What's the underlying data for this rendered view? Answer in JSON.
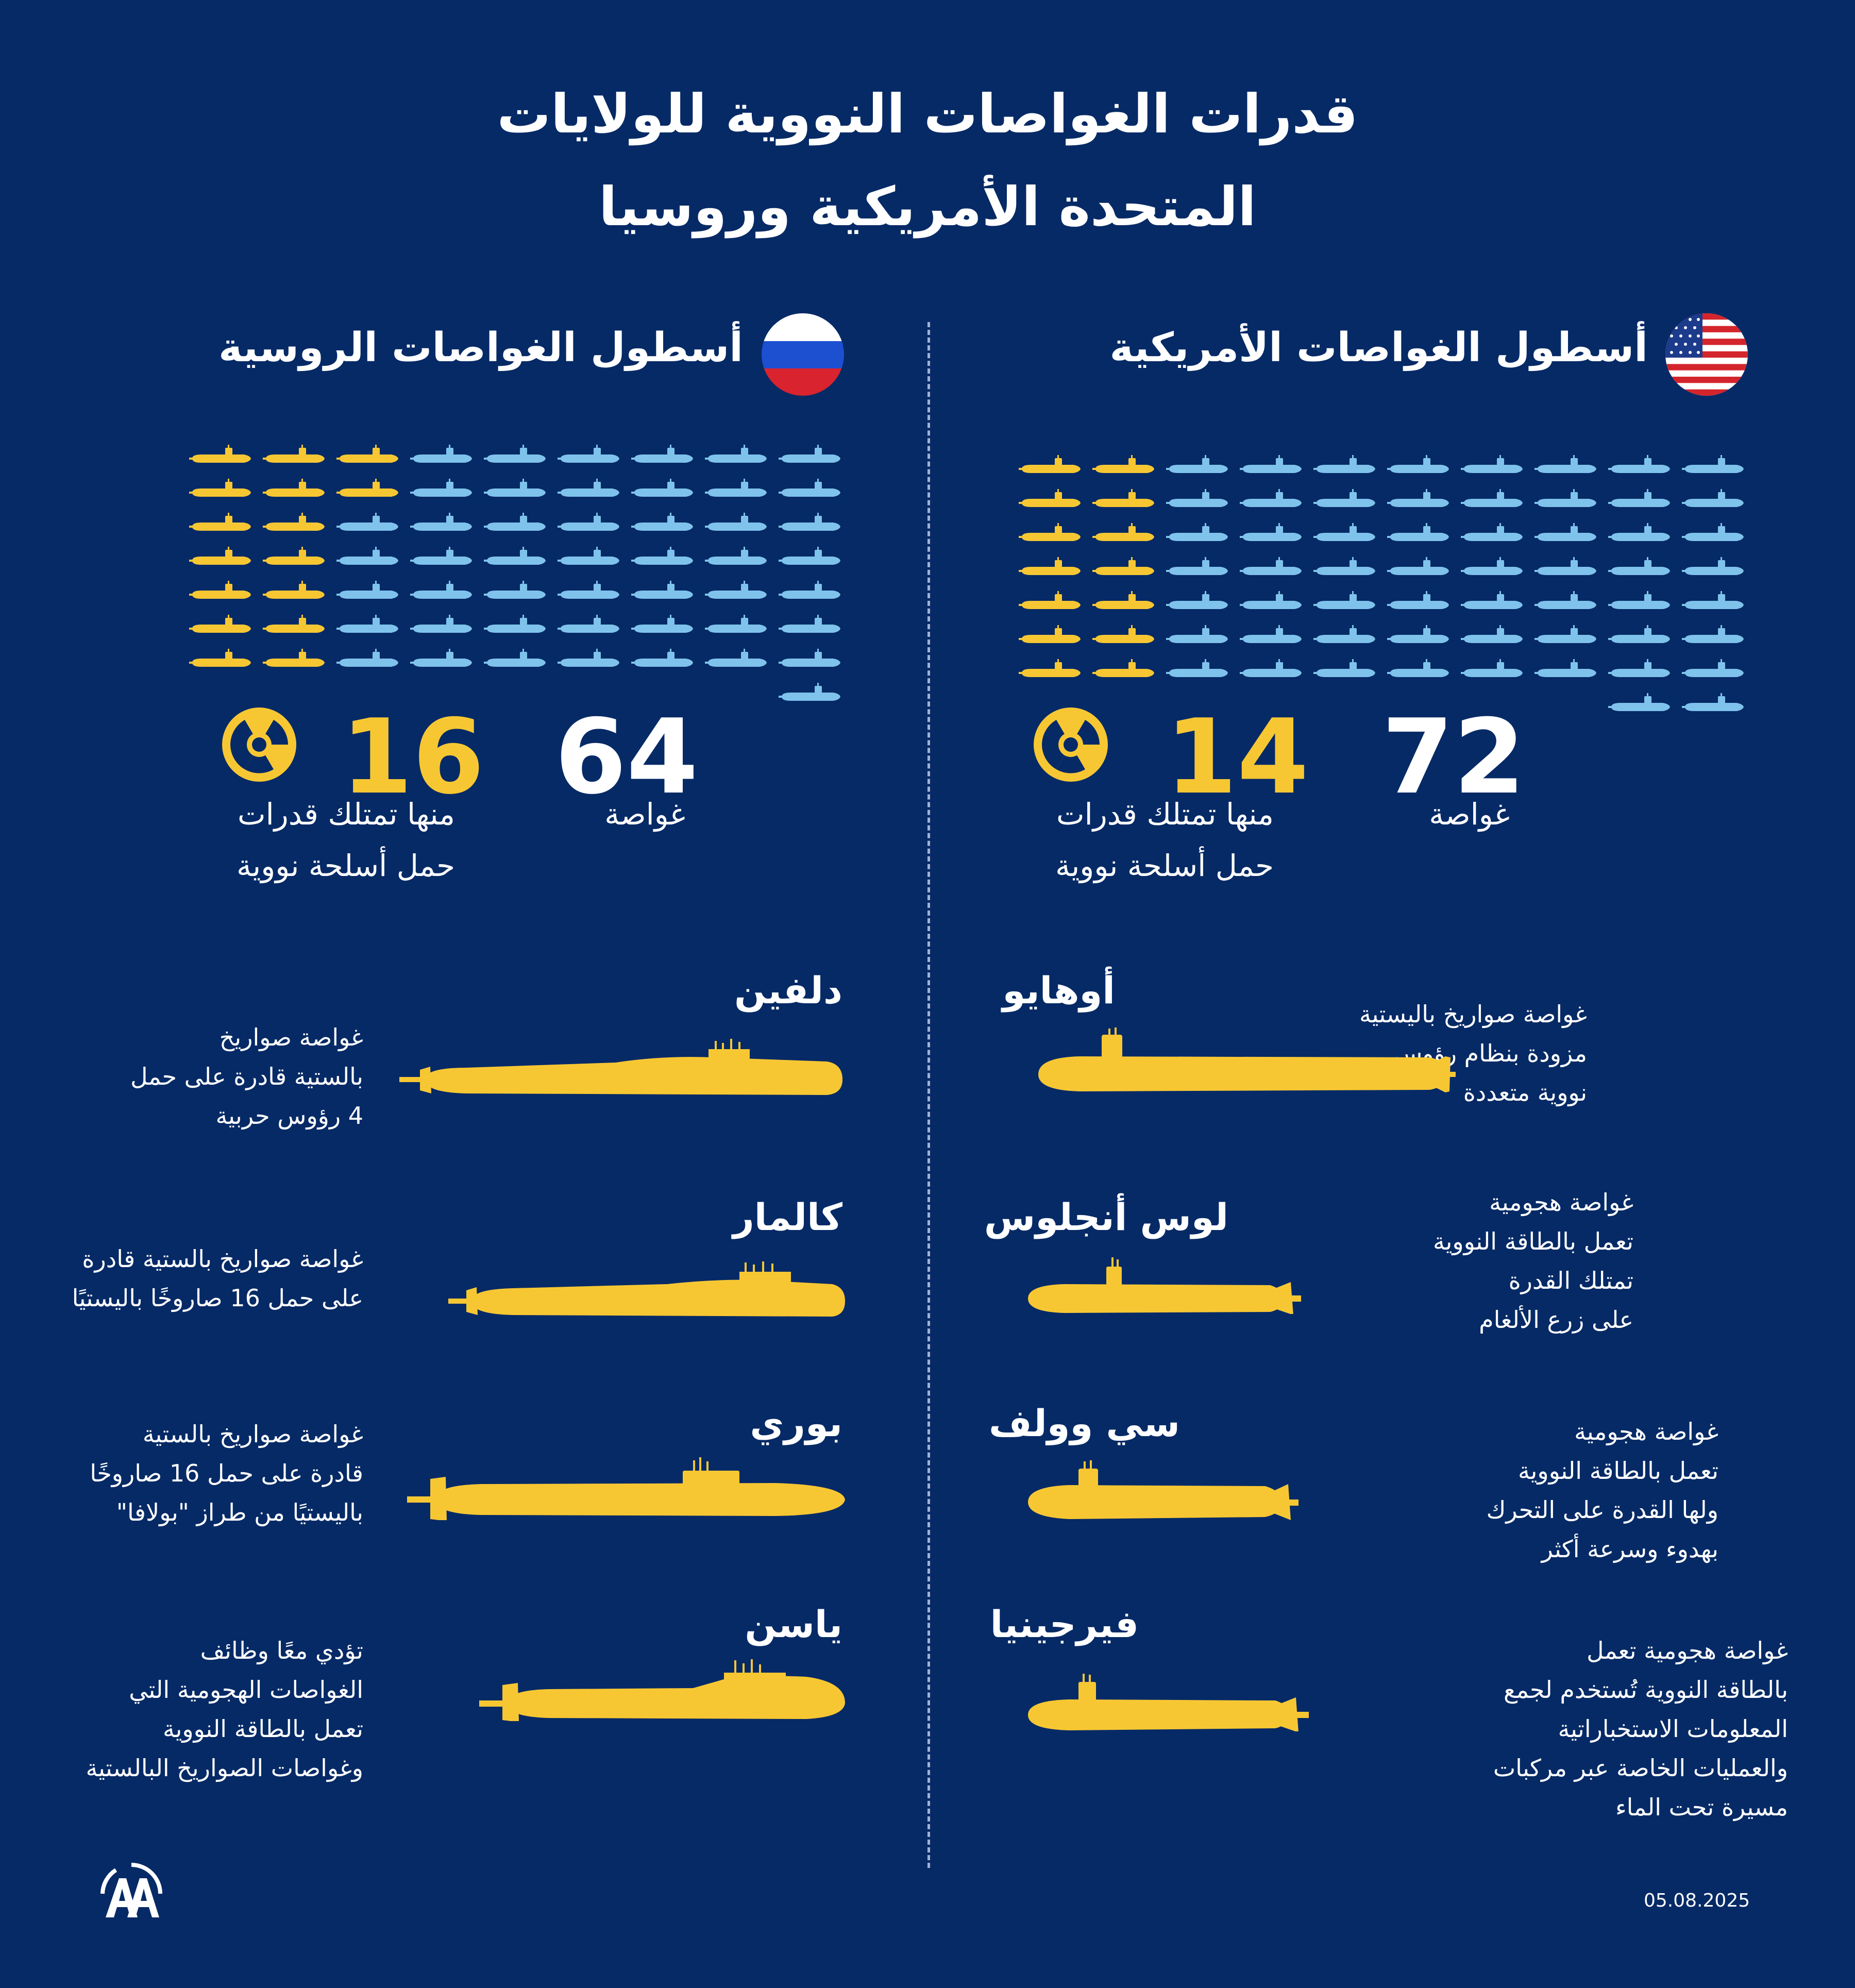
{
  "title": {
    "line1": "قدرات الغواصات النووية للولايات",
    "line2": "المتحدة الأمريكية وروسيا"
  },
  "colors": {
    "background": "#062a66",
    "nuclear": "#f7c733",
    "conventional": "#7fc3ec"
  },
  "usa": {
    "fleet_title": "أسطول الغواصات الأمريكية",
    "flag_icon": "usa-flag-icon",
    "total": "72",
    "total_label": "غواصة",
    "nuclear_count": "14",
    "nuclear_label_1": "منها تمتلك قدرات",
    "nuclear_label_2": "حمل أسلحة نووية",
    "icon_grid": {
      "total": 72,
      "nuclear": 14
    },
    "classes": [
      {
        "name": "أوهايو",
        "desc": [
          "غواصة صواريخ باليستية",
          "مزودة بنظام رؤوس",
          "نووية متعددة"
        ]
      },
      {
        "name": "لوس أنجلوس",
        "desc": [
          "غواصة هجومية",
          "تعمل بالطاقة النووية",
          "تمتلك القدرة",
          "على زرع الألغام"
        ]
      },
      {
        "name": "سي وولف",
        "desc": [
          "غواصة هجومية",
          "تعمل بالطاقة النووية",
          "ولها القدرة على التحرك",
          "بهدوء وسرعة أكثر"
        ]
      },
      {
        "name": "فيرجينيا",
        "desc": [
          "غواصة هجومية تعمل",
          "بالطاقة النووية تُستخدم لجمع",
          "المعلومات الاستخباراتية",
          "والعمليات الخاصة عبر مركبات",
          "مسيرة تحت الماء"
        ]
      }
    ]
  },
  "russia": {
    "fleet_title": "أسطول الغواصات الروسية",
    "flag_icon": "russia-flag-icon",
    "total": "64",
    "total_label": "غواصة",
    "nuclear_count": "16",
    "nuclear_label_1": "منها تمتلك قدرات",
    "nuclear_label_2": "حمل أسلحة نووية",
    "icon_grid": {
      "total": 64,
      "nuclear": 16
    },
    "classes": [
      {
        "name": "دلفين",
        "desc": [
          "غواصة صواريخ",
          "بالستية قادرة على حمل",
          "4 رؤوس حربية"
        ]
      },
      {
        "name": "كالمار",
        "desc": [
          "غواصة صواريخ بالستية قادرة",
          "على حمل 16 صاروخًا باليستيًا"
        ]
      },
      {
        "name": "بوري",
        "desc": [
          "غواصة صواريخ بالستية",
          "قادرة على حمل 16 صاروخًا",
          "باليستيًا من طراز \"بولافا\""
        ]
      },
      {
        "name": "ياسن",
        "desc": [
          "تؤدي معًا وظائف",
          "الغواصات الهجومية التي",
          "تعمل بالطاقة النووية",
          "وغواصات الصواريخ البالستية"
        ]
      }
    ]
  },
  "footer": {
    "date": "05.08.2025",
    "logo_icon": "aa-logo-icon"
  }
}
